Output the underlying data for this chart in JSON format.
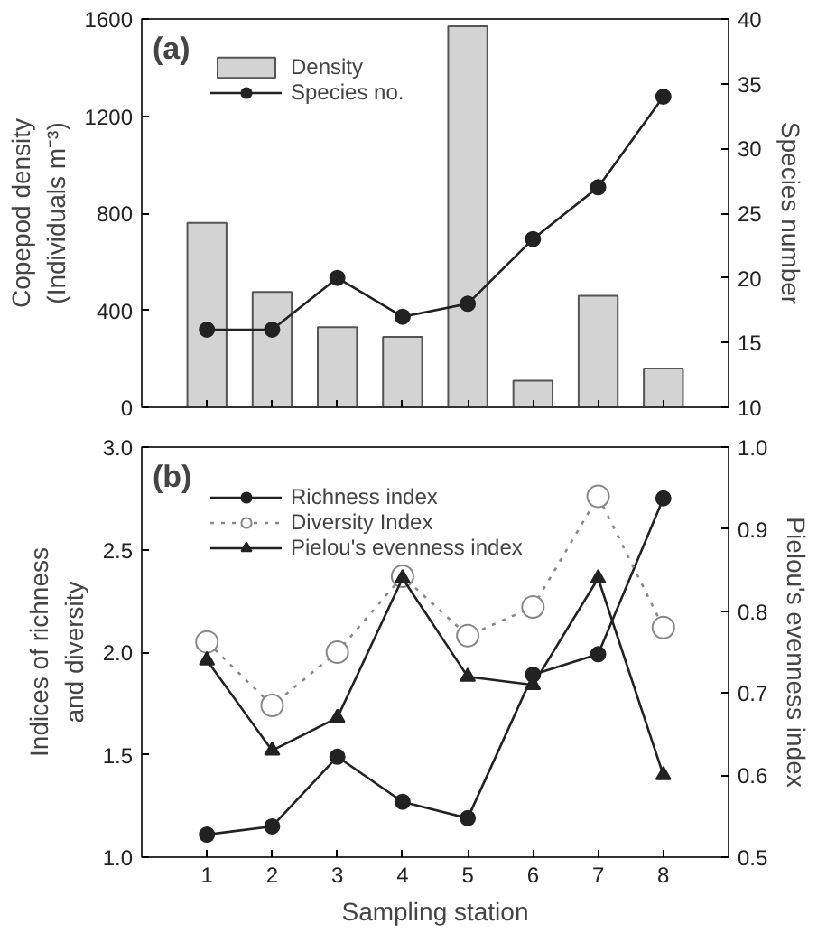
{
  "chart_data": [
    {
      "type": "bar",
      "x": [
        1,
        2,
        3,
        4,
        5,
        6,
        7,
        8
      ],
      "xlim": [
        0,
        9
      ],
      "xticks": [
        {
          "value": 1,
          "label": null
        },
        {
          "value": 2,
          "label": null
        },
        {
          "value": 3,
          "label": null
        },
        {
          "value": 4,
          "label": null
        },
        {
          "value": 5,
          "label": null
        },
        {
          "value": 6,
          "label": null
        },
        {
          "value": 7,
          "label": null
        },
        {
          "value": 8,
          "label": null
        }
      ],
      "ylabel": "Copepod density\n(Individuals m⁻³)",
      "y2label": "Species number",
      "ylim": [
        0,
        1600
      ],
      "yticks": [
        0,
        400,
        800,
        1200,
        1600
      ],
      "y2lim": [
        10,
        40
      ],
      "y2ticks": [
        10,
        15,
        20,
        25,
        30,
        35,
        40
      ],
      "tick_labels": "y",
      "legend": "top left",
      "annotations": [
        "(a)"
      ],
      "series": [
        {
          "name": "Density",
          "type": "bar",
          "color": "#d3d3d3",
          "values": [
            760,
            475,
            330,
            290,
            1570,
            110,
            460,
            160
          ]
        },
        {
          "name": "Species no.",
          "type": "line",
          "axis": "y2",
          "marker": "circle",
          "line_style": "solid",
          "color": "#222222",
          "values": [
            16,
            16,
            20,
            17,
            18,
            23,
            27,
            34
          ]
        }
      ]
    },
    {
      "type": "line",
      "x": [
        1,
        2,
        3,
        4,
        5,
        6,
        7,
        8
      ],
      "xlim": [
        0,
        9
      ],
      "xticks": [
        1,
        2,
        3,
        4,
        5,
        6,
        7,
        8
      ],
      "xlabel": "Sampling station",
      "ylabel": "Indices of richness\nand diversity",
      "y2label": "Pielou's evenness index",
      "ylim": [
        1,
        3
      ],
      "yticks": [
        {
          "value": 1,
          "label": "1.0"
        },
        {
          "value": 1.5,
          "label": "1.5"
        },
        {
          "value": 2,
          "label": "2.0"
        },
        {
          "value": 2.5,
          "label": "2.5"
        },
        {
          "value": 3,
          "label": "3.0"
        }
      ],
      "y2lim": [
        0.5,
        1
      ],
      "y2ticks": [
        {
          "value": 0.5,
          "label": "0.5"
        },
        0.6,
        0.7,
        0.8,
        0.9,
        {
          "value": 1,
          "label": "1.0"
        }
      ],
      "legend": "top left",
      "annotations": [
        "(b)"
      ],
      "series": [
        {
          "name": "Richness index",
          "marker": "circle",
          "line_style": "solid",
          "color": "#222222",
          "values": [
            1.11,
            1.15,
            1.49,
            1.27,
            1.19,
            1.89,
            1.99,
            2.75
          ]
        },
        {
          "name": "Diversity Index",
          "marker": "circle",
          "line_style": "dotted",
          "color": "#888888",
          "values": [
            2.05,
            1.74,
            2.0,
            2.37,
            2.08,
            2.22,
            2.76,
            2.12
          ]
        },
        {
          "name": "Pielou's evenness index",
          "axis": "y2",
          "marker": "triangle",
          "line_style": "solid",
          "color": "#222222",
          "values": [
            0.74,
            0.63,
            0.67,
            0.84,
            0.72,
            0.71,
            0.84,
            0.6
          ]
        }
      ]
    }
  ]
}
